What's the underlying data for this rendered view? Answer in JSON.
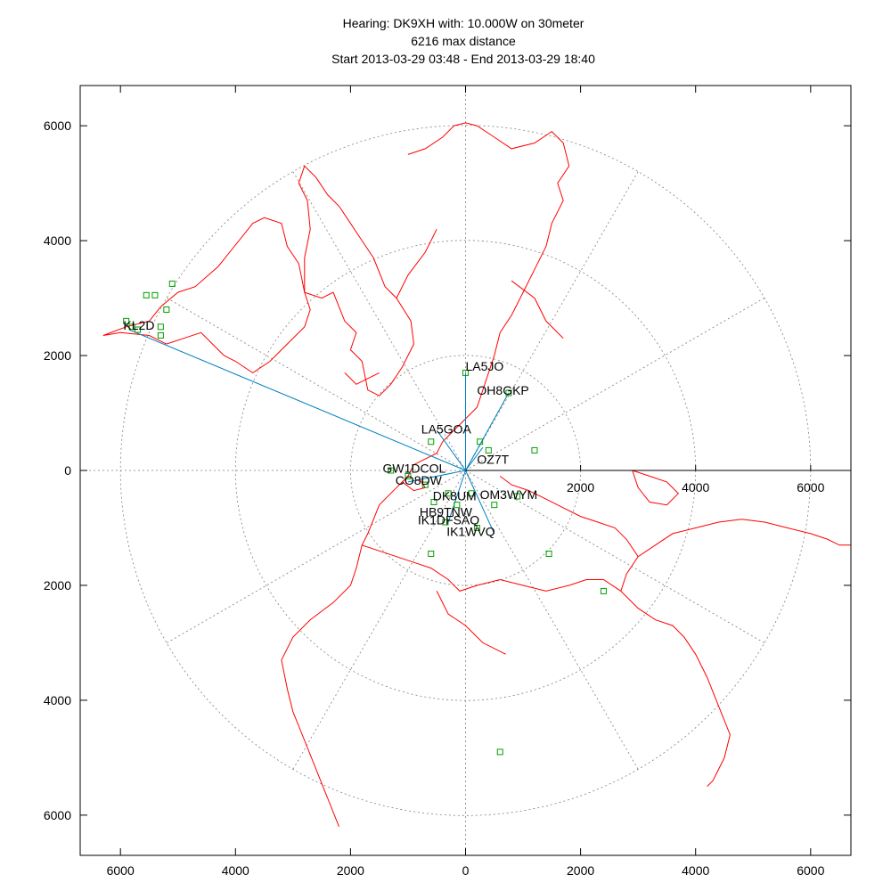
{
  "title": {
    "line1": "Hearing: DK9XH with: 10.000W on 30meter",
    "line2": "6216 max distance",
    "line3": "Start 2013-03-29 03:48 - End 2013-03-29 18:40"
  },
  "colors": {
    "coast": "#ff0000",
    "path": "#0080c0",
    "station": "#00a000",
    "grid": "#808080",
    "axis": "#000000"
  },
  "chart_data": {
    "type": "scatter",
    "projection": "azimuthal-equidistant",
    "center_callsign": "DK9XH",
    "xlim": [
      -6700,
      6700
    ],
    "ylim": [
      -6700,
      6700
    ],
    "x_ticks": [
      "6000",
      "4000",
      "2000",
      "0",
      "2000",
      "4000",
      "6000"
    ],
    "x_tick_values": [
      -6000,
      -4000,
      -2000,
      0,
      2000,
      4000,
      6000
    ],
    "y_ticks": [
      "6000",
      "4000",
      "2000",
      "0",
      "2000",
      "4000",
      "6000"
    ],
    "y_tick_values": [
      6000,
      4000,
      2000,
      0,
      -2000,
      -4000,
      -6000
    ],
    "inner_ticks": [
      "2000",
      "4000",
      "6000"
    ],
    "inner_tick_values": [
      2000,
      4000,
      6000
    ],
    "range_rings": [
      2000,
      4000,
      6000
    ],
    "grid": true,
    "labels": [
      {
        "text": "KL2D",
        "x": -5950,
        "y": 2450
      },
      {
        "text": "LA5JO",
        "x": 0,
        "y": 1740
      },
      {
        "text": "OH8GKP",
        "x": 200,
        "y": 1320
      },
      {
        "text": "LA5GOA",
        "x": -770,
        "y": 640
      },
      {
        "text": "OZ7T",
        "x": 200,
        "y": 120
      },
      {
        "text": "GW1DCOL",
        "x": -1440,
        "y": -40
      },
      {
        "text": "CO8DW",
        "x": -1220,
        "y": -250
      },
      {
        "text": "DK8UM",
        "x": -570,
        "y": -520
      },
      {
        "text": "OM3WYM",
        "x": 250,
        "y": -500
      },
      {
        "text": "HB9TNW",
        "x": -800,
        "y": -800
      },
      {
        "text": "IK1DFSAQ",
        "x": -830,
        "y": -940
      },
      {
        "text": "IK1WVQ",
        "x": -330,
        "y": -1140
      }
    ],
    "paths": [
      {
        "x": -5850,
        "y": 2450
      },
      {
        "x": 0,
        "y": 1700
      },
      {
        "x": 750,
        "y": 1350
      },
      {
        "x": -500,
        "y": 700
      },
      {
        "x": -1000,
        "y": -200
      },
      {
        "x": 500,
        "y": -1100
      },
      {
        "x": -300,
        "y": -900
      },
      {
        "x": 300,
        "y": 400
      }
    ],
    "stations": [
      {
        "x": -5900,
        "y": 2600
      },
      {
        "x": -5800,
        "y": 2500
      },
      {
        "x": -5700,
        "y": 2450
      },
      {
        "x": -5550,
        "y": 3050
      },
      {
        "x": -5400,
        "y": 3050
      },
      {
        "x": -5100,
        "y": 3250
      },
      {
        "x": -5200,
        "y": 2800
      },
      {
        "x": -5300,
        "y": 2500
      },
      {
        "x": -5300,
        "y": 2350
      },
      {
        "x": 0,
        "y": 1700
      },
      {
        "x": 750,
        "y": 1350
      },
      {
        "x": -600,
        "y": 500
      },
      {
        "x": 250,
        "y": 500
      },
      {
        "x": 400,
        "y": 350
      },
      {
        "x": 1200,
        "y": 350
      },
      {
        "x": -1300,
        "y": 0
      },
      {
        "x": -1000,
        "y": -100
      },
      {
        "x": -700,
        "y": -250
      },
      {
        "x": -300,
        "y": -400
      },
      {
        "x": 100,
        "y": -400
      },
      {
        "x": 500,
        "y": -600
      },
      {
        "x": 900,
        "y": -450
      },
      {
        "x": -550,
        "y": -550
      },
      {
        "x": -150,
        "y": -600
      },
      {
        "x": -350,
        "y": -900
      },
      {
        "x": 200,
        "y": -1000
      },
      {
        "x": -600,
        "y": -1450
      },
      {
        "x": 1450,
        "y": -1450
      },
      {
        "x": 2400,
        "y": -2100
      },
      {
        "x": 600,
        "y": -4900
      }
    ]
  },
  "map_data": {
    "coastlines": [
      [
        [
          -6300,
          2350
        ],
        [
          -5900,
          2500
        ],
        [
          -5500,
          2600
        ],
        [
          -5300,
          2850
        ],
        [
          -5000,
          3100
        ],
        [
          -4700,
          3200
        ],
        [
          -4300,
          3550
        ],
        [
          -3700,
          4300
        ],
        [
          -3500,
          4400
        ],
        [
          -3200,
          4300
        ],
        [
          -3100,
          3900
        ],
        [
          -2900,
          3600
        ],
        [
          -2800,
          3100
        ],
        [
          -2700,
          2800
        ],
        [
          -2800,
          2500
        ],
        [
          -3100,
          2200
        ],
        [
          -3400,
          1900
        ],
        [
          -3700,
          1700
        ],
        [
          -4000,
          1900
        ],
        [
          -4200,
          2000
        ],
        [
          -4400,
          2200
        ],
        [
          -4600,
          2400
        ],
        [
          -4900,
          2300
        ],
        [
          -5200,
          2200
        ],
        [
          -5500,
          2350
        ],
        [
          -6000,
          2400
        ],
        [
          -6300,
          2350
        ]
      ],
      [
        [
          -2800,
          3100
        ],
        [
          -2500,
          3000
        ],
        [
          -2300,
          3100
        ],
        [
          -2100,
          2600
        ],
        [
          -1900,
          2400
        ],
        [
          -2000,
          2100
        ],
        [
          -1800,
          1900
        ],
        [
          -1700,
          1400
        ],
        [
          -1500,
          1300
        ],
        [
          -1300,
          1500
        ],
        [
          -1100,
          1800
        ],
        [
          -900,
          2200
        ],
        [
          -950,
          2600
        ],
        [
          -1200,
          3000
        ],
        [
          -1400,
          3200
        ],
        [
          -1600,
          3700
        ],
        [
          -1800,
          4000
        ],
        [
          -2000,
          4300
        ],
        [
          -2200,
          4600
        ],
        [
          -2400,
          4800
        ],
        [
          -2600,
          5100
        ],
        [
          -2800,
          5300
        ],
        [
          -2900,
          5000
        ],
        [
          -2750,
          4700
        ],
        [
          -2700,
          4200
        ],
        [
          -2800,
          3700
        ],
        [
          -2800,
          3100
        ]
      ],
      [
        [
          -1000,
          5500
        ],
        [
          -700,
          5600
        ],
        [
          -400,
          5800
        ],
        [
          -200,
          6000
        ],
        [
          0,
          6050
        ],
        [
          200,
          6000
        ],
        [
          500,
          5800
        ],
        [
          800,
          5600
        ],
        [
          1200,
          5700
        ],
        [
          1500,
          5900
        ],
        [
          1700,
          5700
        ],
        [
          1800,
          5300
        ],
        [
          1600,
          5000
        ],
        [
          1700,
          4700
        ],
        [
          1500,
          4300
        ],
        [
          1400,
          3900
        ],
        [
          1200,
          3500
        ],
        [
          1000,
          3100
        ],
        [
          800,
          2700
        ],
        [
          600,
          2400
        ],
        [
          500,
          2000
        ],
        [
          400,
          1700
        ],
        [
          300,
          1400
        ],
        [
          200,
          1100
        ],
        [
          0,
          900
        ],
        [
          -200,
          700
        ],
        [
          -400,
          500
        ]
      ],
      [
        [
          -400,
          500
        ],
        [
          -500,
          300
        ],
        [
          -700,
          200
        ],
        [
          -900,
          100
        ],
        [
          -1000,
          -100
        ],
        [
          -1200,
          -300
        ],
        [
          -1500,
          -600
        ],
        [
          -1700,
          -1100
        ],
        [
          -1800,
          -1300
        ],
        [
          -1500,
          -1400
        ],
        [
          -1200,
          -1500
        ],
        [
          -900,
          -1600
        ],
        [
          -600,
          -1700
        ],
        [
          -300,
          -1900
        ],
        [
          -100,
          -2100
        ],
        [
          200,
          -2000
        ],
        [
          600,
          -1900
        ],
        [
          1000,
          -2000
        ],
        [
          1400,
          -2100
        ],
        [
          1800,
          -2000
        ],
        [
          2100,
          -1900
        ],
        [
          2400,
          -1900
        ],
        [
          2700,
          -2100
        ],
        [
          3000,
          -2400
        ],
        [
          3300,
          -2600
        ],
        [
          3600,
          -2700
        ],
        [
          3800,
          -2900
        ],
        [
          4000,
          -3200
        ],
        [
          4200,
          -3600
        ],
        [
          4400,
          -4100
        ],
        [
          4600,
          -4600
        ],
        [
          4500,
          -5000
        ],
        [
          4300,
          -5400
        ],
        [
          4200,
          -5500
        ]
      ],
      [
        [
          2700,
          -2100
        ],
        [
          2800,
          -1800
        ],
        [
          3000,
          -1500
        ],
        [
          3300,
          -1300
        ],
        [
          3600,
          -1100
        ],
        [
          4000,
          -1000
        ],
        [
          4400,
          -900
        ],
        [
          4800,
          -850
        ],
        [
          5200,
          -900
        ],
        [
          5600,
          -1000
        ],
        [
          6000,
          -1100
        ],
        [
          6300,
          -1200
        ],
        [
          6500,
          -1300
        ],
        [
          6700,
          -1300
        ]
      ],
      [
        [
          600,
          -100
        ],
        [
          800,
          -250
        ],
        [
          1100,
          -350
        ],
        [
          1400,
          -500
        ],
        [
          1700,
          -650
        ],
        [
          2000,
          -800
        ],
        [
          2300,
          -900
        ],
        [
          2600,
          -1000
        ],
        [
          2800,
          -1200
        ],
        [
          3000,
          -1500
        ]
      ],
      [
        [
          2900,
          0
        ],
        [
          3200,
          -100
        ],
        [
          3500,
          -200
        ],
        [
          3700,
          -400
        ],
        [
          3500,
          -600
        ],
        [
          3200,
          -550
        ],
        [
          3000,
          -300
        ],
        [
          2900,
          0
        ]
      ],
      [
        [
          -1000,
          -100
        ],
        [
          -1100,
          -200
        ],
        [
          -900,
          -350
        ],
        [
          -700,
          -300
        ],
        [
          -800,
          -150
        ]
      ],
      [
        [
          -1800,
          -1300
        ],
        [
          -1900,
          -1700
        ],
        [
          -2000,
          -2000
        ],
        [
          -2300,
          -2300
        ],
        [
          -2700,
          -2600
        ],
        [
          -3000,
          -2900
        ],
        [
          -3200,
          -3300
        ],
        [
          -3100,
          -3800
        ],
        [
          -3000,
          -4200
        ],
        [
          -2800,
          -4700
        ],
        [
          -2600,
          -5200
        ],
        [
          -2400,
          -5700
        ],
        [
          -2200,
          -6200
        ]
      ],
      [
        [
          -500,
          -2100
        ],
        [
          -300,
          -2500
        ],
        [
          0,
          -2700
        ],
        [
          300,
          -3000
        ],
        [
          700,
          -3200
        ]
      ],
      [
        [
          -500,
          4200
        ],
        [
          -700,
          3800
        ],
        [
          -1000,
          3400
        ],
        [
          -1200,
          3000
        ]
      ],
      [
        [
          800,
          3300
        ],
        [
          1200,
          3000
        ],
        [
          1400,
          2600
        ],
        [
          1700,
          2300
        ]
      ],
      [
        [
          -1500,
          1700
        ],
        [
          -1700,
          1600
        ],
        [
          -1900,
          1500
        ],
        [
          -2100,
          1700
        ]
      ]
    ]
  }
}
